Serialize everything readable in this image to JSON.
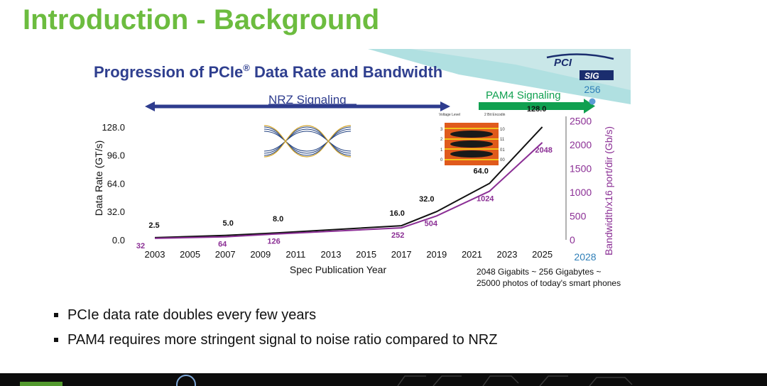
{
  "slide": {
    "title": "Introduction - Background",
    "bullets": [
      "PCIe data rate doubles every few years",
      "PAM4 requires more stringent signal to noise ratio compared to NRZ"
    ]
  },
  "figure": {
    "heading": "Progression of PCIe",
    "heading_reg": "®",
    "heading_rest": " Data Rate and Bandwidth",
    "logo_top": "PCI",
    "logo_bottom": "SIG",
    "nrz_label": "NRZ Signaling",
    "pam4_label": "PAM4 Signaling",
    "note_line1": "2048 Gigabits ~ 256 Gigabytes ~",
    "note_line2": "25000 photos of today's smart phones",
    "pam4_eye_labels": {
      "voltage_header": "Voltage Level",
      "bit_header": "2 Bit Encodin",
      "levels": [
        "3",
        "2",
        "1",
        "0"
      ],
      "codes": [
        "10",
        "11",
        "01",
        "00"
      ]
    }
  },
  "chart_data": {
    "type": "line",
    "xlabel": "Spec Publication Year",
    "ylabel": "Data Rate (GT/s)",
    "y2label": "Bandwidth/x16 port/dir (Gb/s)",
    "x_ticks": [
      "2003",
      "2005",
      "2007",
      "2009",
      "2011",
      "2013",
      "2015",
      "2017",
      "2019",
      "2021",
      "2023",
      "2025"
    ],
    "xlim": [
      2003,
      2028
    ],
    "y_ticks": [
      "0.0",
      "32.0",
      "64.0",
      "96.0",
      "128.0"
    ],
    "ylim": [
      0,
      140
    ],
    "y2_ticks": [
      "0",
      "500",
      "1000",
      "1500",
      "2000",
      "2500"
    ],
    "y2lim": [
      0,
      2600
    ],
    "grid": false,
    "series": [
      {
        "color": "#111111",
        "points": [
          [
            2003,
            2.5
          ],
          [
            2007,
            5.0
          ],
          [
            2010,
            8.0
          ],
          [
            2017,
            16.0
          ],
          [
            2019,
            32.0
          ],
          [
            2022,
            64.0
          ],
          [
            2025,
            128.0
          ]
        ],
        "labels": [
          "2.5",
          "5.0",
          "8.0",
          "16.0",
          "32.0",
          "64.0",
          "128.0"
        ]
      },
      {
        "color": "#8b2f95",
        "axis": "y2",
        "points": [
          [
            2003,
            32
          ],
          [
            2007,
            64
          ],
          [
            2010,
            126
          ],
          [
            2017,
            252
          ],
          [
            2019,
            504
          ],
          [
            2022,
            1024
          ],
          [
            2025,
            2048
          ]
        ],
        "labels": [
          "32",
          "64",
          "126",
          "252",
          "504",
          "1024",
          "2048"
        ]
      }
    ],
    "extra_point": {
      "year": 2028,
      "label_top": "256",
      "label_year": "2028",
      "color": "#5b9bd5"
    }
  }
}
